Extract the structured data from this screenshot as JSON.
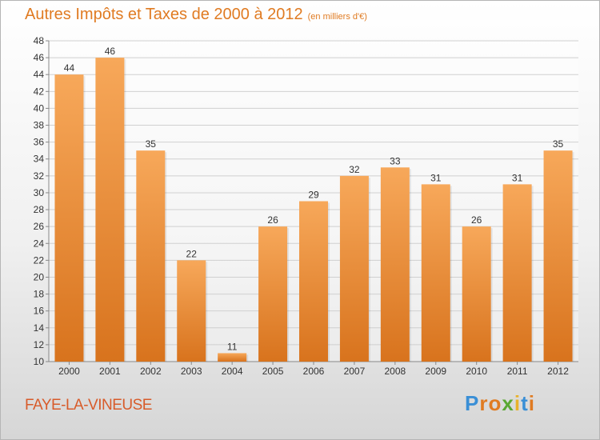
{
  "header": {
    "title": "Autres Impôts et Taxes de 2000 à 2012",
    "subtitle": "(en milliers d'€)"
  },
  "footer": {
    "place": "FAYE-LA-VINEUSE",
    "logo_letters": [
      "P",
      "r",
      "o",
      "x",
      "i",
      "t",
      "i"
    ],
    "logo_colors": [
      "#3a8fd6",
      "#e07b22",
      "#e07b22",
      "#5aa832",
      "#e8b22a",
      "#3a8fd6",
      "#e07b22"
    ]
  },
  "colors": {
    "bar_top": "#f7a85a",
    "bar_bottom": "#d8731d",
    "title": "#e07b22",
    "grid": "#d0d0d0",
    "axis_text": "#333333"
  },
  "chart_data": {
    "type": "bar",
    "categories": [
      "2000",
      "2001",
      "2002",
      "2003",
      "2004",
      "2005",
      "2006",
      "2007",
      "2008",
      "2009",
      "2010",
      "2011",
      "2012"
    ],
    "values": [
      44,
      46,
      35,
      22,
      11,
      26,
      29,
      32,
      33,
      31,
      26,
      31,
      35
    ],
    "data_labels": [
      "44",
      "46",
      "35",
      "22",
      "11",
      "26",
      "29",
      "32",
      "33",
      "31",
      "26",
      "31",
      "35"
    ],
    "ylim": [
      10,
      48
    ],
    "yticks": [
      10,
      12,
      14,
      16,
      18,
      20,
      22,
      24,
      26,
      28,
      30,
      32,
      34,
      36,
      38,
      40,
      42,
      44,
      46,
      48
    ],
    "grid": true
  }
}
